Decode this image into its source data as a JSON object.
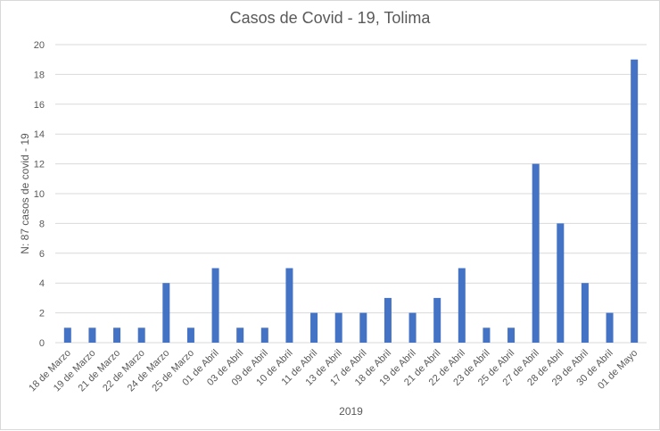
{
  "chart_data": {
    "type": "bar",
    "title": "Casos de Covid - 19, Tolima",
    "xlabel": "2019",
    "ylabel": "N: 87 casos de covid - 19",
    "ylim": [
      0,
      20
    ],
    "yticks": [
      0,
      2,
      4,
      6,
      8,
      10,
      12,
      14,
      16,
      18,
      20
    ],
    "grid": true,
    "legend": "none",
    "bar_color": "#4472C4",
    "categories": [
      "18 de Marzo",
      "19 de Marzo",
      "21 de Marzo",
      "22 de Marzo",
      "24 de Marzo",
      "25 de Marzo",
      "01 de Abril",
      "03 de Abril",
      "09 de Abril",
      "10 de Abril",
      "11 de Abril",
      "13 de Abril",
      "17 de Abril",
      "18 de Abril",
      "19 de Abril",
      "21 de Abril",
      "22 de Abril",
      "23 de Abril",
      "25 de Abril",
      "27 de Abril",
      "28 de Abril",
      "29 de Abril",
      "30 de Abril",
      "01 de Mayo"
    ],
    "values": [
      1,
      1,
      1,
      1,
      4,
      1,
      5,
      1,
      1,
      5,
      2,
      2,
      2,
      3,
      2,
      3,
      5,
      1,
      1,
      12,
      8,
      4,
      2,
      19
    ]
  }
}
